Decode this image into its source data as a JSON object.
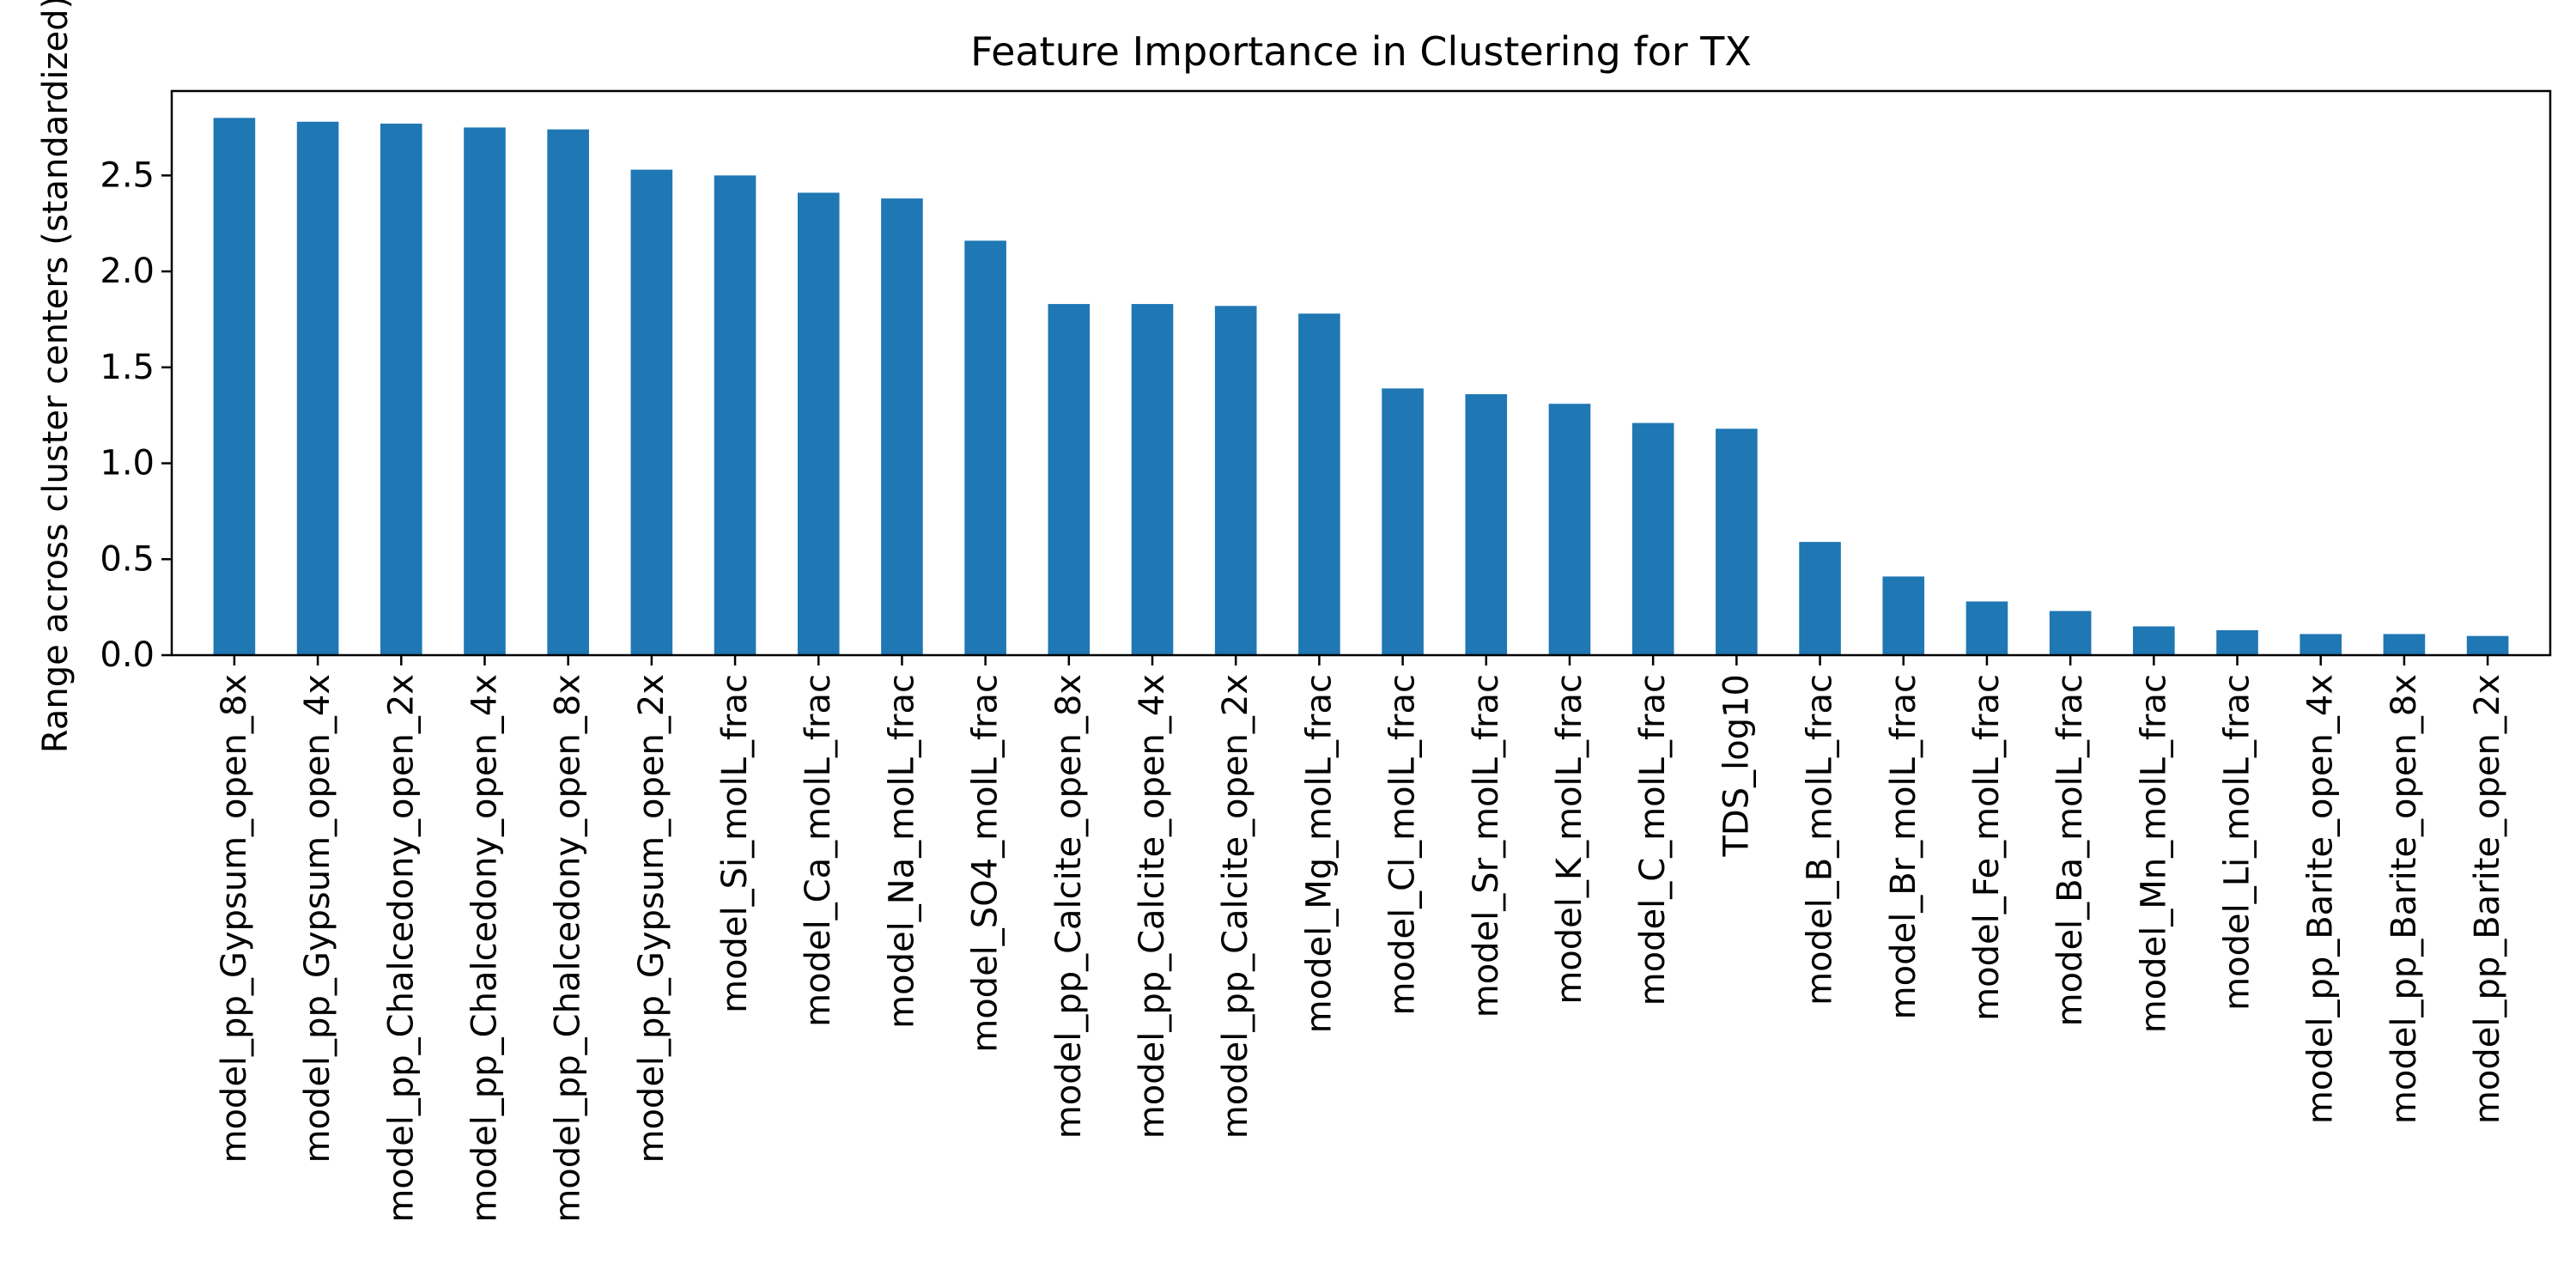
{
  "chart_data": {
    "type": "bar",
    "title": "Feature Importance in Clustering for TX",
    "xlabel": "",
    "ylabel": "Range across cluster centers (standardized)",
    "ylim": [
      0,
      2.94
    ],
    "yticks": [
      "0.0",
      "0.5",
      "1.0",
      "1.5",
      "2.0",
      "2.5"
    ],
    "grid": false,
    "bar_color": "#1f77b4",
    "categories": [
      "model_pp_Gypsum_open_8x",
      "model_pp_Gypsum_open_4x",
      "model_pp_Chalcedony_open_2x",
      "model_pp_Chalcedony_open_4x",
      "model_pp_Chalcedony_open_8x",
      "model_pp_Gypsum_open_2x",
      "model_Si_molL_frac",
      "model_Ca_molL_frac",
      "model_Na_molL_frac",
      "model_SO4_molL_frac",
      "model_pp_Calcite_open_8x",
      "model_pp_Calcite_open_4x",
      "model_pp_Calcite_open_2x",
      "model_Mg_molL_frac",
      "model_Cl_molL_frac",
      "model_Sr_molL_frac",
      "model_K_molL_frac",
      "model_C_molL_frac",
      "TDS_log10",
      "model_B_molL_frac",
      "model_Br_molL_frac",
      "model_Fe_molL_frac",
      "model_Ba_molL_frac",
      "model_Mn_molL_frac",
      "model_Li_molL_frac",
      "model_pp_Barite_open_4x",
      "model_pp_Barite_open_8x",
      "model_pp_Barite_open_2x"
    ],
    "values": [
      2.8,
      2.78,
      2.77,
      2.75,
      2.74,
      2.53,
      2.5,
      2.41,
      2.38,
      2.16,
      1.83,
      1.83,
      1.82,
      1.78,
      1.39,
      1.36,
      1.31,
      1.21,
      1.18,
      0.59,
      0.41,
      0.28,
      0.23,
      0.15,
      0.13,
      0.11,
      0.11,
      0.1
    ]
  }
}
